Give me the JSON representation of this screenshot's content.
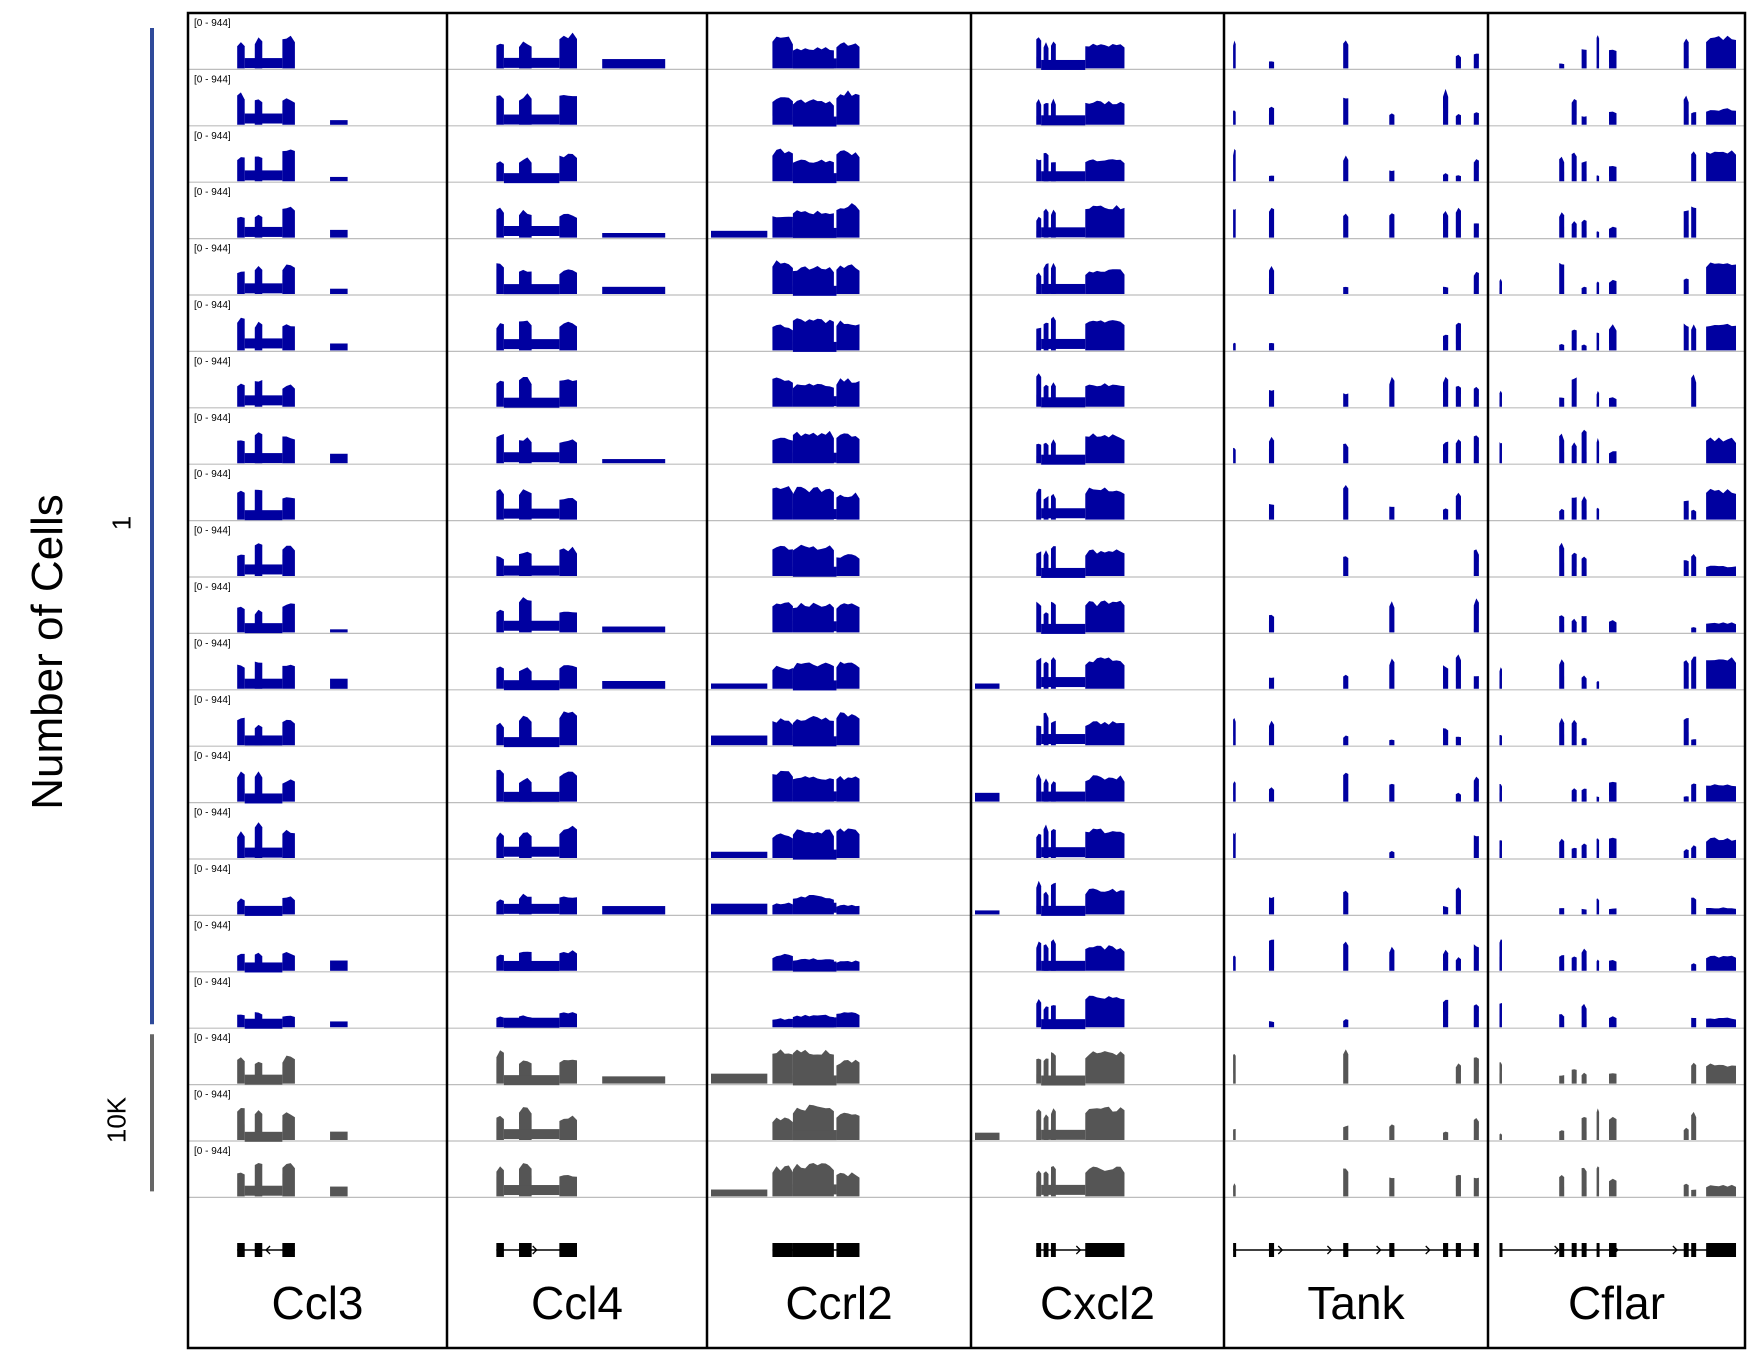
{
  "y_axis_title": "Number of Cells",
  "groups": [
    {
      "label": "1",
      "color": "#2f4a9a",
      "tracks": 18
    },
    {
      "label": "10K",
      "color": "#666666",
      "tracks": 3
    }
  ],
  "chart_data": {
    "type": "area",
    "description_title": "Coverage tracks per gene",
    "track_range_label": "[0 - 944]",
    "ylim": [
      0,
      944
    ],
    "n_tracks": 21,
    "single_cell_track_color": "#0000a0",
    "bulk_track_color": "#555555",
    "genes": [
      {
        "name": "Ccl3",
        "exons": [
          [
            0.18,
            0.21
          ],
          [
            0.25,
            0.28
          ],
          [
            0.36,
            0.41
          ]
        ],
        "strand": "-",
        "extension": [
          0.55,
          0.62
        ]
      },
      {
        "name": "Ccl4",
        "exons": [
          [
            0.18,
            0.21
          ],
          [
            0.27,
            0.32
          ],
          [
            0.43,
            0.5
          ]
        ],
        "strand": "+",
        "extension": [
          0.6,
          0.85
        ]
      },
      {
        "name": "Ccrl2",
        "exons": [
          [
            0.24,
            0.32
          ],
          [
            0.32,
            0.48
          ],
          [
            0.49,
            0.58
          ]
        ],
        "strand": "+",
        "extension": [
          0.0,
          0.22
        ]
      },
      {
        "name": "Cxcl2",
        "exons": [
          [
            0.25,
            0.27
          ],
          [
            0.28,
            0.3
          ],
          [
            0.31,
            0.33
          ],
          [
            0.45,
            0.61
          ]
        ],
        "strand": "+",
        "extension": [
          0.0,
          0.1
        ]
      },
      {
        "name": "Tank",
        "exons": [
          [
            0.02,
            0.03
          ],
          [
            0.16,
            0.18
          ],
          [
            0.45,
            0.47
          ],
          [
            0.63,
            0.65
          ],
          [
            0.84,
            0.86
          ],
          [
            0.89,
            0.91
          ],
          [
            0.96,
            0.98
          ]
        ],
        "strand": "+",
        "extension": null
      },
      {
        "name": "Cflar",
        "exons": [
          [
            0.03,
            0.04
          ],
          [
            0.27,
            0.29
          ],
          [
            0.32,
            0.34
          ],
          [
            0.36,
            0.38
          ],
          [
            0.42,
            0.43
          ],
          [
            0.47,
            0.5
          ],
          [
            0.77,
            0.79
          ],
          [
            0.8,
            0.82
          ],
          [
            0.86,
            0.98
          ]
        ],
        "strand": "+",
        "extension": null
      }
    ]
  }
}
